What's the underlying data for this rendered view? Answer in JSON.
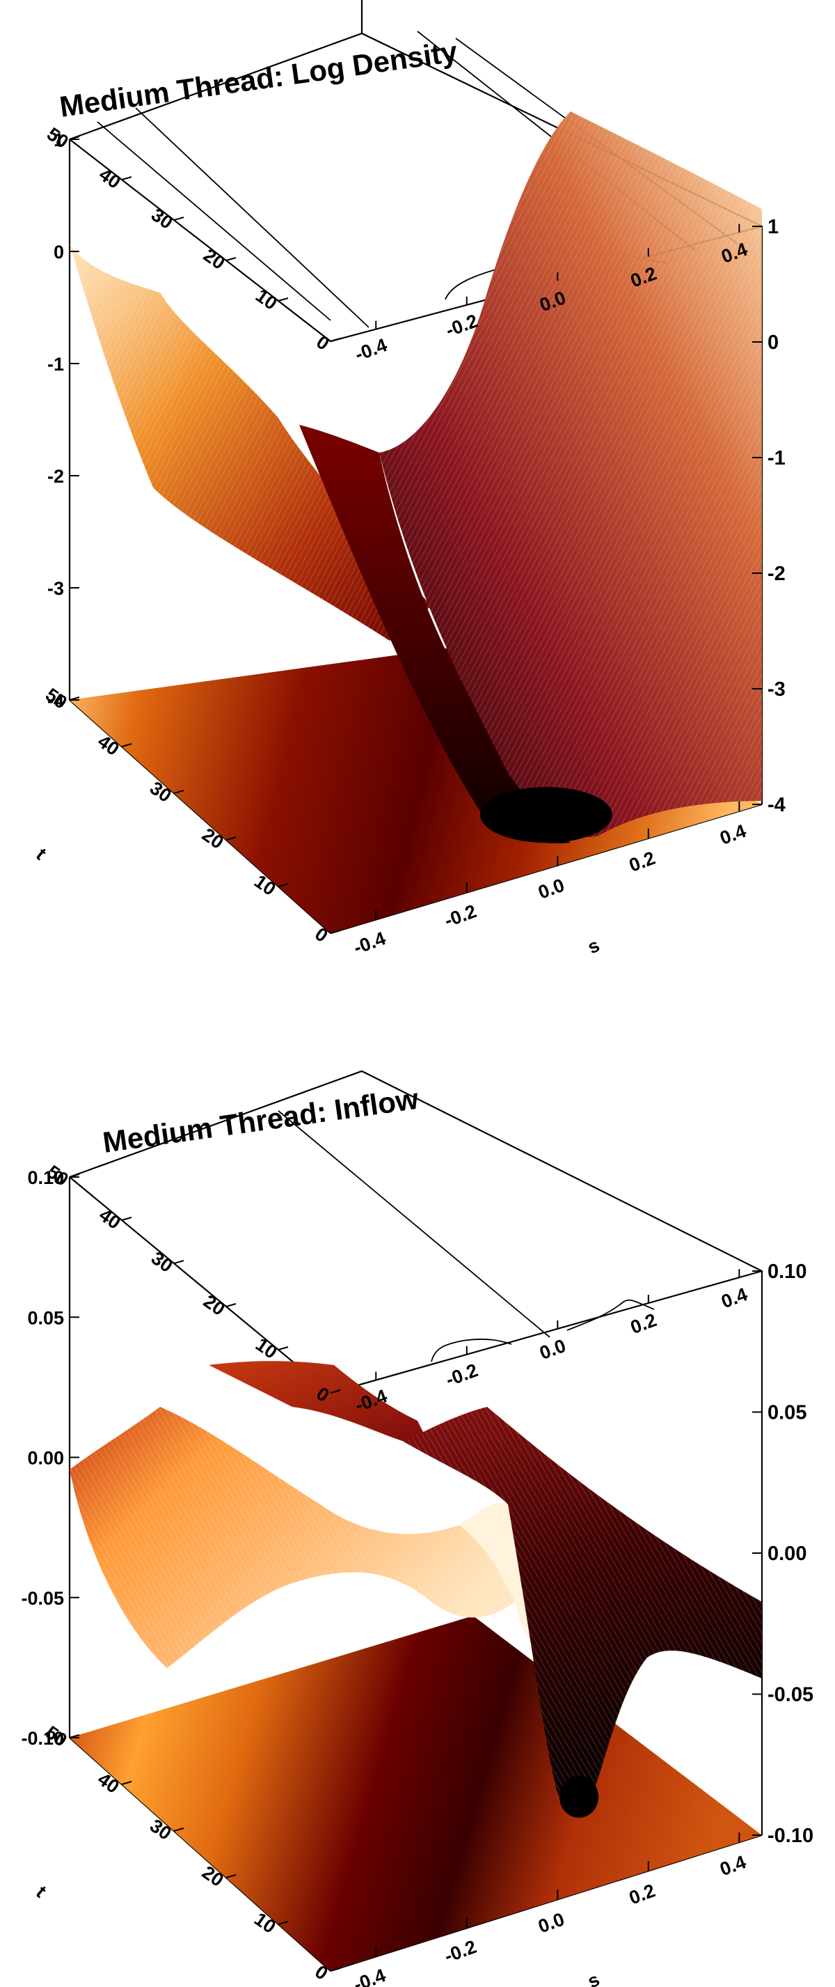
{
  "chart_data": [
    {
      "type": "surface",
      "title": "Medium Thread: Log Density",
      "xlabel": "s",
      "ylabel": "t",
      "x_ticks": [
        "-0.4",
        "-0.2",
        "0.0",
        "0.2",
        "0.4"
      ],
      "y_ticks": [
        "0",
        "10",
        "20",
        "30",
        "40",
        "50"
      ],
      "z_ticks": [
        "-4",
        "-3",
        "-2",
        "-1",
        "0",
        "1"
      ],
      "xlim": [
        -0.5,
        0.45
      ],
      "ylim": [
        0,
        50
      ],
      "zlim": [
        -4,
        1
      ],
      "surface_profile": {
        "s": [
          -0.5,
          -0.4,
          -0.3,
          -0.2,
          -0.1,
          0.0,
          0.1,
          0.2,
          0.3,
          0.4,
          0.45
        ],
        "log_density_t0": [
          -0.5,
          -1.6,
          -2.6,
          -3.3,
          -3.7,
          -3.9,
          -3.6,
          -2.8,
          -1.5,
          0.0,
          0.8
        ],
        "log_density_t50": [
          -0.3,
          -1.3,
          -2.0,
          -1.8,
          -1.6,
          -1.6,
          -1.9,
          -2.2,
          -1.3,
          0.1,
          0.9
        ]
      },
      "palette": [
        "#000000",
        "#6b0000",
        "#b02a05",
        "#e06a10",
        "#ffa43a",
        "#fff0d0"
      ]
    },
    {
      "type": "surface",
      "title": "Medium Thread: Inflow",
      "xlabel": "s",
      "ylabel": "t",
      "x_ticks": [
        "-0.4",
        "-0.2",
        "0.0",
        "0.2",
        "0.4"
      ],
      "y_ticks": [
        "0",
        "10",
        "20",
        "30",
        "40",
        "50"
      ],
      "z_ticks": [
        "-0.10",
        "-0.05",
        "0.00",
        "0.05",
        "0.10"
      ],
      "xlim": [
        -0.5,
        0.45
      ],
      "ylim": [
        0,
        50
      ],
      "zlim": [
        -0.1,
        0.1
      ],
      "surface_profile": {
        "s": [
          -0.5,
          -0.4,
          -0.3,
          -0.2,
          -0.1,
          0.0,
          0.1,
          0.2,
          0.3,
          0.4,
          0.45
        ],
        "inflow_t0": [
          0.003,
          0.0,
          -0.004,
          -0.01,
          -0.03,
          -0.07,
          -0.1,
          -0.06,
          -0.02,
          -0.005,
          0.0
        ],
        "inflow_t50": [
          0.003,
          0.01,
          0.02,
          0.03,
          0.045,
          0.03,
          0.0,
          -0.02,
          -0.005,
          0.0,
          0.0
        ]
      },
      "palette": [
        "#000000",
        "#6b0000",
        "#b02a05",
        "#e06a10",
        "#ffa43a",
        "#fff0d0"
      ]
    }
  ]
}
